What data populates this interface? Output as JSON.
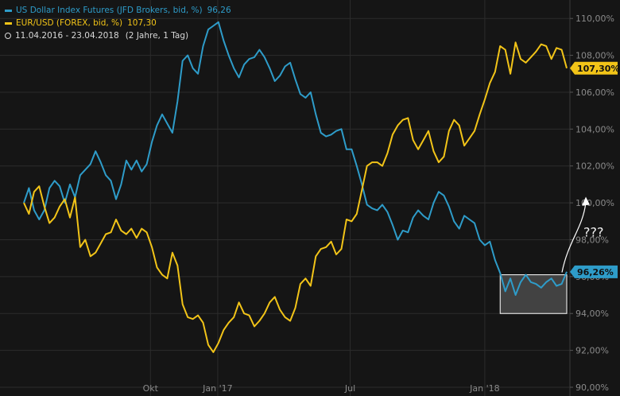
{
  "legend": {
    "usd_label": "US Dollar Index Futures (JFD Brokers, bid, %)",
    "usd_value": "96,26",
    "eur_label": "EUR/USD (FOREX, bid, %)",
    "eur_value": "107,30",
    "period": "11.04.2016 - 23.04.2018",
    "range": "(2 Jahre, 1 Tag)"
  },
  "chart_data": {
    "type": "line",
    "x_range": [
      "2016-04-11",
      "2018-04-23"
    ],
    "ylim": [
      90,
      111
    ],
    "y_ticks": [
      "90,00%",
      "92,00%",
      "94,00%",
      "96,00%",
      "98,00%",
      "100,00%",
      "102,00%",
      "104,00%",
      "106,00%",
      "108,00%",
      "110,00%"
    ],
    "x_ticks": [
      {
        "label": "Okt",
        "date": "2016-10-01"
      },
      {
        "label": "Jan '17",
        "date": "2017-01-01"
      },
      {
        "label": "Jul",
        "date": "2017-07-01"
      },
      {
        "label": "Jan '18",
        "date": "2018-01-01"
      }
    ],
    "grid": true,
    "series": [
      {
        "name": "US Dollar Index Futures (JFD Brokers, bid, %)",
        "color": "#2e9cc9",
        "last_label": "96,26%",
        "points": [
          [
            "2016-04-11",
            100.0
          ],
          [
            "2016-04-18",
            100.8
          ],
          [
            "2016-04-25",
            99.6
          ],
          [
            "2016-05-02",
            99.1
          ],
          [
            "2016-05-09",
            99.6
          ],
          [
            "2016-05-16",
            100.8
          ],
          [
            "2016-05-23",
            101.2
          ],
          [
            "2016-05-30",
            100.9
          ],
          [
            "2016-06-06",
            100.0
          ],
          [
            "2016-06-13",
            101.0
          ],
          [
            "2016-06-20",
            100.3
          ],
          [
            "2016-06-27",
            101.5
          ],
          [
            "2016-07-04",
            101.8
          ],
          [
            "2016-07-11",
            102.1
          ],
          [
            "2016-07-18",
            102.8
          ],
          [
            "2016-07-25",
            102.2
          ],
          [
            "2016-08-01",
            101.5
          ],
          [
            "2016-08-08",
            101.2
          ],
          [
            "2016-08-15",
            100.2
          ],
          [
            "2016-08-22",
            101.0
          ],
          [
            "2016-08-29",
            102.3
          ],
          [
            "2016-09-05",
            101.8
          ],
          [
            "2016-09-12",
            102.3
          ],
          [
            "2016-09-19",
            101.7
          ],
          [
            "2016-09-26",
            102.1
          ],
          [
            "2016-10-03",
            103.3
          ],
          [
            "2016-10-10",
            104.2
          ],
          [
            "2016-10-17",
            104.8
          ],
          [
            "2016-10-24",
            104.3
          ],
          [
            "2016-10-31",
            103.8
          ],
          [
            "2016-11-07",
            105.5
          ],
          [
            "2016-11-14",
            107.7
          ],
          [
            "2016-11-21",
            108.0
          ],
          [
            "2016-11-28",
            107.3
          ],
          [
            "2016-12-05",
            107.0
          ],
          [
            "2016-12-12",
            108.5
          ],
          [
            "2016-12-19",
            109.4
          ],
          [
            "2016-12-26",
            109.6
          ],
          [
            "2017-01-02",
            109.8
          ],
          [
            "2017-01-09",
            108.8
          ],
          [
            "2017-01-16",
            108.0
          ],
          [
            "2017-01-23",
            107.3
          ],
          [
            "2017-01-30",
            106.8
          ],
          [
            "2017-02-06",
            107.5
          ],
          [
            "2017-02-13",
            107.8
          ],
          [
            "2017-02-20",
            107.9
          ],
          [
            "2017-02-27",
            108.3
          ],
          [
            "2017-03-06",
            107.9
          ],
          [
            "2017-03-13",
            107.3
          ],
          [
            "2017-03-20",
            106.6
          ],
          [
            "2017-03-27",
            106.9
          ],
          [
            "2017-04-03",
            107.4
          ],
          [
            "2017-04-10",
            107.6
          ],
          [
            "2017-04-17",
            106.7
          ],
          [
            "2017-04-24",
            105.9
          ],
          [
            "2017-05-01",
            105.7
          ],
          [
            "2017-05-08",
            106.0
          ],
          [
            "2017-05-15",
            104.8
          ],
          [
            "2017-05-22",
            103.8
          ],
          [
            "2017-05-29",
            103.6
          ],
          [
            "2017-06-05",
            103.7
          ],
          [
            "2017-06-12",
            103.9
          ],
          [
            "2017-06-19",
            104.0
          ],
          [
            "2017-06-26",
            102.9
          ],
          [
            "2017-07-03",
            102.9
          ],
          [
            "2017-07-10",
            102.0
          ],
          [
            "2017-07-17",
            101.0
          ],
          [
            "2017-07-24",
            99.9
          ],
          [
            "2017-07-31",
            99.7
          ],
          [
            "2017-08-07",
            99.6
          ],
          [
            "2017-08-14",
            99.9
          ],
          [
            "2017-08-21",
            99.5
          ],
          [
            "2017-08-28",
            98.8
          ],
          [
            "2017-09-04",
            98.0
          ],
          [
            "2017-09-11",
            98.5
          ],
          [
            "2017-09-18",
            98.4
          ],
          [
            "2017-09-25",
            99.2
          ],
          [
            "2017-10-02",
            99.6
          ],
          [
            "2017-10-09",
            99.3
          ],
          [
            "2017-10-16",
            99.1
          ],
          [
            "2017-10-23",
            100.0
          ],
          [
            "2017-10-30",
            100.6
          ],
          [
            "2017-11-06",
            100.4
          ],
          [
            "2017-11-13",
            99.8
          ],
          [
            "2017-11-20",
            99.0
          ],
          [
            "2017-11-27",
            98.6
          ],
          [
            "2017-12-04",
            99.3
          ],
          [
            "2017-12-11",
            99.1
          ],
          [
            "2017-12-18",
            98.9
          ],
          [
            "2017-12-25",
            98.0
          ],
          [
            "2018-01-01",
            97.7
          ],
          [
            "2018-01-08",
            97.9
          ],
          [
            "2018-01-15",
            96.9
          ],
          [
            "2018-01-22",
            96.2
          ],
          [
            "2018-01-29",
            95.2
          ],
          [
            "2018-02-05",
            95.9
          ],
          [
            "2018-02-12",
            95.0
          ],
          [
            "2018-02-19",
            95.7
          ],
          [
            "2018-02-26",
            96.1
          ],
          [
            "2018-03-05",
            95.7
          ],
          [
            "2018-03-12",
            95.6
          ],
          [
            "2018-03-19",
            95.4
          ],
          [
            "2018-03-26",
            95.7
          ],
          [
            "2018-04-02",
            95.9
          ],
          [
            "2018-04-09",
            95.5
          ],
          [
            "2018-04-16",
            95.6
          ],
          [
            "2018-04-23",
            96.26
          ]
        ]
      },
      {
        "name": "EUR/USD (FOREX, bid, %)",
        "color": "#f2c418",
        "last_label": "107,30%",
        "points": [
          [
            "2016-04-11",
            100.0
          ],
          [
            "2016-04-18",
            99.4
          ],
          [
            "2016-04-25",
            100.6
          ],
          [
            "2016-05-02",
            100.9
          ],
          [
            "2016-05-09",
            99.8
          ],
          [
            "2016-05-16",
            98.9
          ],
          [
            "2016-05-23",
            99.2
          ],
          [
            "2016-05-30",
            99.8
          ],
          [
            "2016-06-06",
            100.2
          ],
          [
            "2016-06-13",
            99.2
          ],
          [
            "2016-06-20",
            100.3
          ],
          [
            "2016-06-27",
            97.6
          ],
          [
            "2016-07-04",
            98.0
          ],
          [
            "2016-07-11",
            97.1
          ],
          [
            "2016-07-18",
            97.3
          ],
          [
            "2016-07-25",
            97.8
          ],
          [
            "2016-08-01",
            98.3
          ],
          [
            "2016-08-08",
            98.4
          ],
          [
            "2016-08-15",
            99.1
          ],
          [
            "2016-08-22",
            98.5
          ],
          [
            "2016-08-29",
            98.3
          ],
          [
            "2016-09-05",
            98.6
          ],
          [
            "2016-09-12",
            98.1
          ],
          [
            "2016-09-19",
            98.6
          ],
          [
            "2016-09-26",
            98.4
          ],
          [
            "2016-10-03",
            97.6
          ],
          [
            "2016-10-10",
            96.5
          ],
          [
            "2016-10-17",
            96.1
          ],
          [
            "2016-10-24",
            95.9
          ],
          [
            "2016-10-31",
            97.3
          ],
          [
            "2016-11-07",
            96.6
          ],
          [
            "2016-11-14",
            94.5
          ],
          [
            "2016-11-21",
            93.8
          ],
          [
            "2016-11-28",
            93.7
          ],
          [
            "2016-12-05",
            93.9
          ],
          [
            "2016-12-12",
            93.5
          ],
          [
            "2016-12-19",
            92.3
          ],
          [
            "2016-12-26",
            91.9
          ],
          [
            "2017-01-02",
            92.4
          ],
          [
            "2017-01-09",
            93.1
          ],
          [
            "2017-01-16",
            93.5
          ],
          [
            "2017-01-23",
            93.8
          ],
          [
            "2017-01-30",
            94.6
          ],
          [
            "2017-02-06",
            94.0
          ],
          [
            "2017-02-13",
            93.9
          ],
          [
            "2017-02-20",
            93.3
          ],
          [
            "2017-02-27",
            93.6
          ],
          [
            "2017-03-06",
            94.0
          ],
          [
            "2017-03-13",
            94.6
          ],
          [
            "2017-03-20",
            94.9
          ],
          [
            "2017-03-27",
            94.2
          ],
          [
            "2017-04-03",
            93.8
          ],
          [
            "2017-04-10",
            93.6
          ],
          [
            "2017-04-17",
            94.3
          ],
          [
            "2017-04-24",
            95.6
          ],
          [
            "2017-05-01",
            95.9
          ],
          [
            "2017-05-08",
            95.5
          ],
          [
            "2017-05-15",
            97.1
          ],
          [
            "2017-05-22",
            97.5
          ],
          [
            "2017-05-29",
            97.6
          ],
          [
            "2017-06-05",
            97.9
          ],
          [
            "2017-06-12",
            97.2
          ],
          [
            "2017-06-19",
            97.5
          ],
          [
            "2017-06-26",
            99.1
          ],
          [
            "2017-07-03",
            99.0
          ],
          [
            "2017-07-10",
            99.4
          ],
          [
            "2017-07-17",
            100.7
          ],
          [
            "2017-07-24",
            102.0
          ],
          [
            "2017-07-31",
            102.2
          ],
          [
            "2017-08-07",
            102.2
          ],
          [
            "2017-08-14",
            102.0
          ],
          [
            "2017-08-21",
            102.7
          ],
          [
            "2017-08-28",
            103.7
          ],
          [
            "2017-09-04",
            104.2
          ],
          [
            "2017-09-11",
            104.5
          ],
          [
            "2017-09-18",
            104.6
          ],
          [
            "2017-09-25",
            103.4
          ],
          [
            "2017-10-02",
            102.9
          ],
          [
            "2017-10-09",
            103.4
          ],
          [
            "2017-10-16",
            103.9
          ],
          [
            "2017-10-23",
            102.8
          ],
          [
            "2017-10-30",
            102.2
          ],
          [
            "2017-11-06",
            102.5
          ],
          [
            "2017-11-13",
            103.9
          ],
          [
            "2017-11-20",
            104.5
          ],
          [
            "2017-11-27",
            104.2
          ],
          [
            "2017-12-04",
            103.1
          ],
          [
            "2017-12-11",
            103.5
          ],
          [
            "2017-12-18",
            103.9
          ],
          [
            "2017-12-25",
            104.8
          ],
          [
            "2018-01-01",
            105.6
          ],
          [
            "2018-01-08",
            106.5
          ],
          [
            "2018-01-15",
            107.1
          ],
          [
            "2018-01-22",
            108.5
          ],
          [
            "2018-01-29",
            108.3
          ],
          [
            "2018-02-05",
            107.0
          ],
          [
            "2018-02-12",
            108.7
          ],
          [
            "2018-02-19",
            107.8
          ],
          [
            "2018-02-26",
            107.6
          ],
          [
            "2018-03-05",
            107.9
          ],
          [
            "2018-03-12",
            108.2
          ],
          [
            "2018-03-19",
            108.6
          ],
          [
            "2018-03-26",
            108.5
          ],
          [
            "2018-04-02",
            107.8
          ],
          [
            "2018-04-09",
            108.4
          ],
          [
            "2018-04-16",
            108.3
          ],
          [
            "2018-04-23",
            107.3
          ]
        ]
      }
    ],
    "annotation": {
      "text": "???",
      "box_x": [
        "2018-01-22",
        "2018-04-23"
      ],
      "box_y": [
        94.0,
        96.1
      ]
    }
  }
}
